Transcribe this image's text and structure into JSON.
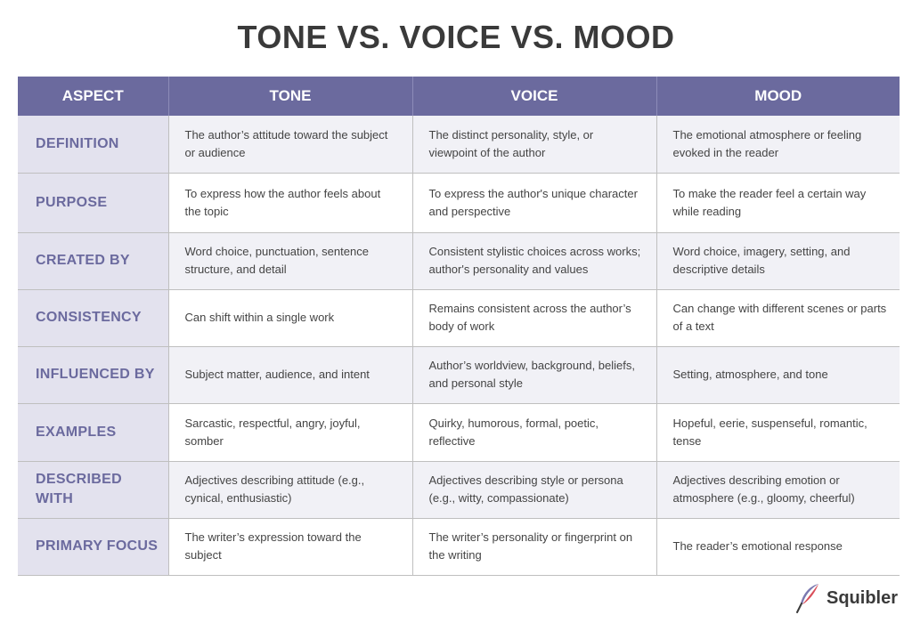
{
  "title": "TONE VS. VOICE VS. MOOD",
  "headers": [
    "ASPECT",
    "TONE",
    "VOICE",
    "MOOD"
  ],
  "rows": [
    {
      "aspect": "DEFINITION",
      "tone": "The author’s attitude toward the subject or audience",
      "voice": "The distinct personality, style, or viewpoint of the author",
      "mood": "The emotional atmosphere or feeling evoked in the reader"
    },
    {
      "aspect": "PURPOSE",
      "tone": "To express how the author feels about the topic",
      "voice": "To express the author's unique character and perspective",
      "mood": "To make the reader feel a certain way while reading"
    },
    {
      "aspect": "CREATED BY",
      "tone": "Word choice, punctuation, sentence structure, and detail",
      "voice": "Consistent stylistic choices across works; author's personality and values",
      "mood": "Word choice, imagery, setting, and descriptive details"
    },
    {
      "aspect": "CONSISTENCY",
      "tone": "Can shift within a single work",
      "voice": "Remains consistent across the author’s body of work",
      "mood": "Can change with different scenes or parts of a text"
    },
    {
      "aspect": "INFLUENCED BY",
      "tone": "Subject matter, audience, and intent",
      "voice": "Author’s worldview, background, beliefs, and personal style",
      "mood": "Setting, atmosphere, and tone"
    },
    {
      "aspect": "EXAMPLES",
      "tone": "Sarcastic, respectful, angry, joyful, somber",
      "voice": "Quirky, humorous, formal, poetic, reflective",
      "mood": "Hopeful, eerie, suspenseful, romantic, tense"
    },
    {
      "aspect": "DESCRIBED WITH",
      "tone": "Adjectives describing attitude (e.g., cynical, enthusiastic)",
      "voice": "Adjectives describing style or persona (e.g., witty, compassionate)",
      "mood": "Adjectives describing emotion or atmosphere (e.g., gloomy, cheerful)"
    },
    {
      "aspect": "PRIMARY FOCUS",
      "tone": "The writer’s expression toward the subject",
      "voice": "The writer’s personality or fingerprint on the writing",
      "mood": "The reader’s emotional response"
    }
  ],
  "brand": {
    "name": "Squibler",
    "logo_icon": "quill-feather-icon"
  },
  "colors": {
    "header_bg": "#6b6a9e",
    "aspect_bg": "#e3e2ee",
    "aspect_text": "#6b6a9e",
    "stripe_bg": "#f1f1f6"
  }
}
